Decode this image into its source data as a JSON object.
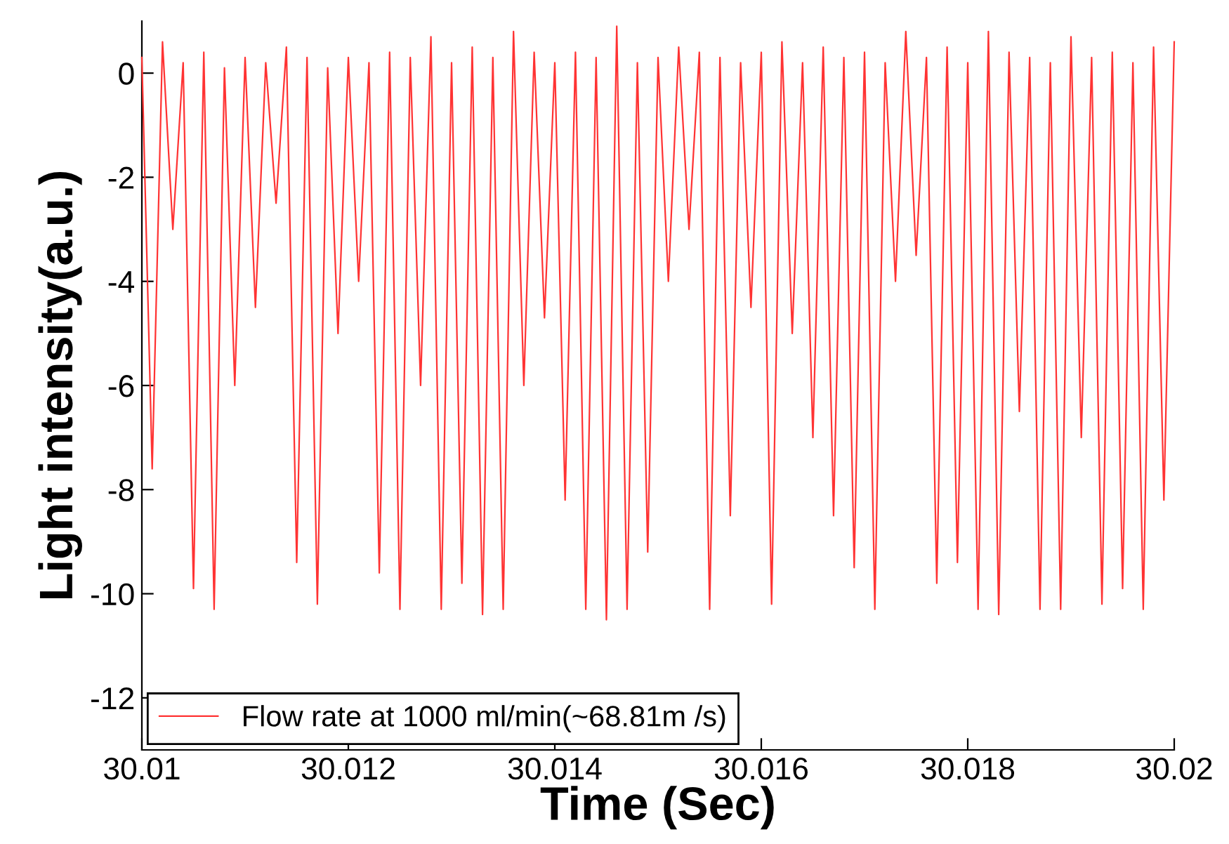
{
  "chart_data": {
    "type": "line",
    "xlabel": "Time (Sec)",
    "ylabel": "Light intensity(a.u.)",
    "xlim": [
      30.01,
      30.02
    ],
    "xticks": [
      30.01,
      30.012,
      30.014,
      30.016,
      30.018,
      30.02
    ],
    "ylim": [
      -13,
      1
    ],
    "yticks": [
      -12,
      -10,
      -8,
      -6,
      -4,
      -2,
      0
    ],
    "grid": false,
    "legend": "bottom left",
    "marker": "none",
    "line_style": "solid",
    "series": [
      {
        "name": "Flow rate at 1000 ml/min(~68.81m /s)",
        "color": "#ff3333",
        "x": [
          30.01,
          30.0101,
          30.0102,
          30.0103,
          30.0104,
          30.0105,
          30.0106,
          30.0107,
          30.0108,
          30.0109,
          30.011,
          30.0111,
          30.0112,
          30.0113,
          30.0114,
          30.0115,
          30.0116,
          30.0117,
          30.0118,
          30.0119,
          30.012,
          30.0121,
          30.0122,
          30.0123,
          30.0124,
          30.0125,
          30.0126,
          30.0127,
          30.0128,
          30.0129,
          30.013,
          30.0131,
          30.0132,
          30.0133,
          30.0134,
          30.0135,
          30.0136,
          30.0137,
          30.0138,
          30.0139,
          30.014,
          30.0141,
          30.0142,
          30.0143,
          30.0144,
          30.0145,
          30.0146,
          30.0147,
          30.0148,
          30.0149,
          30.015,
          30.0151,
          30.0152,
          30.0153,
          30.0154,
          30.0155,
          30.0156,
          30.0157,
          30.0158,
          30.0159,
          30.016,
          30.0161,
          30.0162,
          30.0163,
          30.0164,
          30.0165,
          30.0166,
          30.0167,
          30.0168,
          30.0169,
          30.017,
          30.0171,
          30.0172,
          30.0173,
          30.0174,
          30.0175,
          30.0176,
          30.0177,
          30.0178,
          30.0179,
          30.018,
          30.0181,
          30.0182,
          30.0183,
          30.0184,
          30.0185,
          30.0186,
          30.0187,
          30.0188,
          30.0189,
          30.019,
          30.0191,
          30.0192,
          30.0193,
          30.0194,
          30.0195,
          30.0196,
          30.0197,
          30.0198,
          30.0199,
          30.02
        ],
        "values": [
          0.3,
          -7.6,
          0.6,
          -3,
          0.2,
          -9.9,
          0.4,
          -10.3,
          0.1,
          -6,
          0.3,
          -4.5,
          0.2,
          -2.5,
          0.5,
          -9.4,
          0.3,
          -10.2,
          0.1,
          -5,
          0.3,
          -4,
          0.2,
          -9.6,
          0.4,
          -10.3,
          0.3,
          -6,
          0.7,
          -10.3,
          0.2,
          -9.8,
          0.5,
          -10.4,
          0.3,
          -10.3,
          0.8,
          -6,
          0.4,
          -4.7,
          0.2,
          -8.2,
          0.4,
          -10.3,
          0.3,
          -10.5,
          0.9,
          -10.3,
          0.2,
          -9.2,
          0.3,
          -4,
          0.5,
          -3,
          0.4,
          -10.3,
          0.3,
          -8.5,
          0.2,
          -4.5,
          0.4,
          -10.2,
          0.6,
          -5,
          0.2,
          -7,
          0.5,
          -8.5,
          0.3,
          -9.5,
          0.4,
          -10.3,
          0.2,
          -4,
          0.8,
          -3.5,
          0.3,
          -9.8,
          0.5,
          -9.4,
          0.2,
          -10.3,
          0.8,
          -10.4,
          0.4,
          -6.5,
          0.3,
          -10.3,
          0.2,
          -10.3,
          0.7,
          -7,
          0.3,
          -10.2,
          0.4,
          -9.9,
          0.2,
          -10.3,
          0.5,
          -8.2,
          0.6
        ]
      }
    ]
  }
}
